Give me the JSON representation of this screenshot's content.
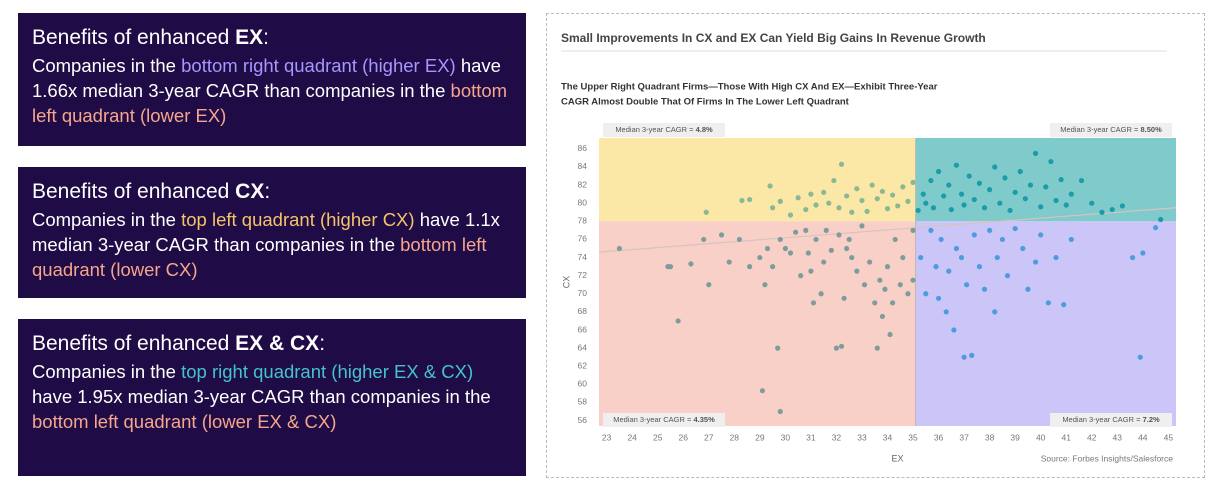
{
  "panels": [
    {
      "heading": [
        {
          "text": "Benefits of enhanced "
        },
        {
          "text": "EX",
          "bold": true
        },
        {
          "text": ":"
        }
      ],
      "body": [
        {
          "text": "Companies in the "
        },
        {
          "text": "bottom right quadrant (higher EX)",
          "color": "#a796ff"
        },
        {
          "text": " have 1.66x median 3-year CAGR than companies in the "
        },
        {
          "text": "bottom left quadrant (lower EX)",
          "color": "#f6a58e"
        }
      ]
    },
    {
      "heading": [
        {
          "text": "Benefits of enhanced "
        },
        {
          "text": "CX",
          "bold": true
        },
        {
          "text": ":"
        }
      ],
      "body": [
        {
          "text": "Companies in the "
        },
        {
          "text": "top left quadrant (higher CX)",
          "color": "#f5c46a"
        },
        {
          "text": " have 1.1x median 3-year CAGR than companies in the "
        },
        {
          "text": "bottom left quadrant (lower CX)",
          "color": "#f6a58e"
        }
      ]
    },
    {
      "heading": [
        {
          "text": "Benefits of enhanced "
        },
        {
          "text": "EX & CX",
          "bold": true
        },
        {
          "text": ":"
        }
      ],
      "body": [
        {
          "text": "Companies in the "
        },
        {
          "text": "top right quadrant (higher EX & CX)",
          "color": "#45c2cc"
        },
        {
          "text": " have 1.95x median 3-year CAGR than companies in the "
        },
        {
          "text": "bottom left quadrant (lower EX & CX)",
          "color": "#f6a58e"
        }
      ]
    }
  ],
  "chart_data": {
    "type": "scatter",
    "title": "Small Improvements In CX and EX Can Yield Big Gains In Revenue Growth",
    "subtitle": [
      "The Upper Right Quadrant Firms—Those With High CX And EX—Exhibit Three-Year",
      "CAGR Almost Double That Of Firms In The Lower Left Quadrant"
    ],
    "x_label": "EX",
    "y_label": "CX",
    "source": "Source: Forbes Insights/Salesforce",
    "xlim": [
      22.7,
      45.3
    ],
    "ylim": [
      55.4,
      87.2
    ],
    "xticks": [
      23,
      24,
      25,
      26,
      27,
      28,
      29,
      30,
      31,
      32,
      33,
      34,
      35,
      36,
      37,
      38,
      39,
      40,
      41,
      42,
      43,
      44,
      45
    ],
    "yticks": [
      56,
      58,
      60,
      62,
      64,
      66,
      68,
      70,
      72,
      74,
      76,
      78,
      80,
      82,
      84,
      86
    ],
    "x_split": 35.1,
    "y_split": 78,
    "quadrants": [
      {
        "position": "top-left",
        "color": "#fbe8a6",
        "point_color": "#8ab897",
        "label": "Median 3-year CAGR = ",
        "cagr": "4.8%"
      },
      {
        "position": "top-right",
        "color": "#7fcbcb",
        "point_color": "#1a9caa",
        "label": "Median 3-year CAGR = ",
        "cagr": "8.50%"
      },
      {
        "position": "bottom-left",
        "color": "#f8d0c8",
        "point_color": "#7e9c9c",
        "label": "Median 3-year CAGR = ",
        "cagr": "4.35%"
      },
      {
        "position": "bottom-right",
        "color": "#cbc6f7",
        "point_color": "#4f9be0",
        "label": "Median 3-year CAGR = ",
        "cagr": "7.2%"
      }
    ],
    "trendline": {
      "x": [
        22.7,
        45.3
      ],
      "y": [
        74.6,
        79.5
      ],
      "color": "#d9c3bd"
    },
    "points": {
      "x": [
        23.5,
        25.4,
        25.5,
        25.8,
        26.3,
        26.8,
        27,
        27.5,
        27.8,
        28.2,
        28.6,
        29,
        29.1,
        29.2,
        29.3,
        29.5,
        29.7,
        29.8,
        30,
        30.2,
        30.4,
        30.6,
        30.8,
        30.9,
        31,
        31.1,
        31.2,
        31.4,
        31.5,
        31.6,
        31.8,
        32,
        32.1,
        32.2,
        32.3,
        32.4,
        32.5,
        32.6,
        32.8,
        33,
        33.1,
        33.3,
        33.5,
        33.6,
        33.7,
        33.8,
        33.9,
        34,
        34.1,
        34.2,
        34.3,
        34.5,
        34.6,
        34.8,
        35,
        35,
        26.9,
        28.3,
        28.6,
        29.4,
        29.5,
        29.8,
        30.2,
        30.5,
        30.8,
        31,
        31.2,
        31.5,
        31.7,
        31.9,
        32.1,
        32.2,
        32.4,
        32.6,
        32.8,
        33,
        33.2,
        33.4,
        33.6,
        33.8,
        34,
        34.2,
        34.4,
        34.6,
        34.8,
        35,
        35.2,
        35.4,
        35.5,
        35.7,
        35.8,
        36,
        36.2,
        36.4,
        36.5,
        36.7,
        36.9,
        37,
        37.2,
        37.4,
        37.6,
        37.8,
        38,
        38.2,
        38.4,
        38.6,
        38.8,
        39,
        39.2,
        39.4,
        39.6,
        39.8,
        40,
        40.2,
        40.4,
        40.6,
        40.8,
        41,
        41.2,
        41.6,
        42,
        42.4,
        42.8,
        43.2,
        44.7,
        35.3,
        35.5,
        35.7,
        35.9,
        36,
        36.1,
        36.3,
        36.4,
        36.6,
        36.7,
        36.9,
        37,
        37.1,
        37.3,
        37.4,
        37.6,
        37.8,
        38,
        38.2,
        38.3,
        38.5,
        38.7,
        39,
        39.3,
        39.5,
        39.8,
        40,
        40.3,
        40.6,
        40.9,
        41.2,
        43.6,
        43.9,
        44,
        44.5,
        29.8
      ],
      "y": [
        75,
        73,
        73,
        67,
        73.3,
        76,
        71,
        76.5,
        73.5,
        76,
        73,
        74,
        59.3,
        71,
        75,
        73,
        64,
        76,
        75,
        74.5,
        76.8,
        72,
        77,
        74.5,
        72.5,
        69,
        76,
        70,
        73.5,
        77,
        74.8,
        64,
        76.5,
        64.2,
        69.5,
        75,
        76,
        74,
        72.5,
        77.5,
        71,
        73.5,
        69,
        64,
        71.5,
        67.5,
        70.5,
        73,
        65.5,
        69,
        76,
        71,
        74,
        70,
        71.5,
        77,
        79,
        80.3,
        80.4,
        81.9,
        79.5,
        80.2,
        78.7,
        80.6,
        79.3,
        81,
        79.8,
        81.2,
        80,
        82.5,
        79.5,
        84.3,
        80.8,
        79,
        81.6,
        80.3,
        79.1,
        82,
        80.5,
        81.3,
        79.4,
        80.9,
        79.7,
        81.8,
        80.2,
        82.3,
        79.2,
        81,
        80,
        82.5,
        79.5,
        83.5,
        80.8,
        82,
        79.3,
        84.2,
        81,
        79.8,
        83,
        80.4,
        82.2,
        79.5,
        81.5,
        84,
        80,
        82.8,
        79.2,
        81.2,
        83.5,
        80.5,
        82,
        85.5,
        79.6,
        81.8,
        84.6,
        80.3,
        82.6,
        79.8,
        81,
        82.5,
        80,
        79,
        79.3,
        79.7,
        78.2,
        74,
        70,
        77,
        73,
        69.5,
        76,
        68,
        72.5,
        66,
        75,
        74,
        63,
        71,
        63.2,
        76.5,
        73,
        70.5,
        77,
        68,
        74,
        76,
        72,
        77.2,
        75,
        70.5,
        73.5,
        76.5,
        69,
        74,
        68.8,
        76,
        74,
        63,
        74.5,
        77.3,
        57
      ]
    }
  }
}
